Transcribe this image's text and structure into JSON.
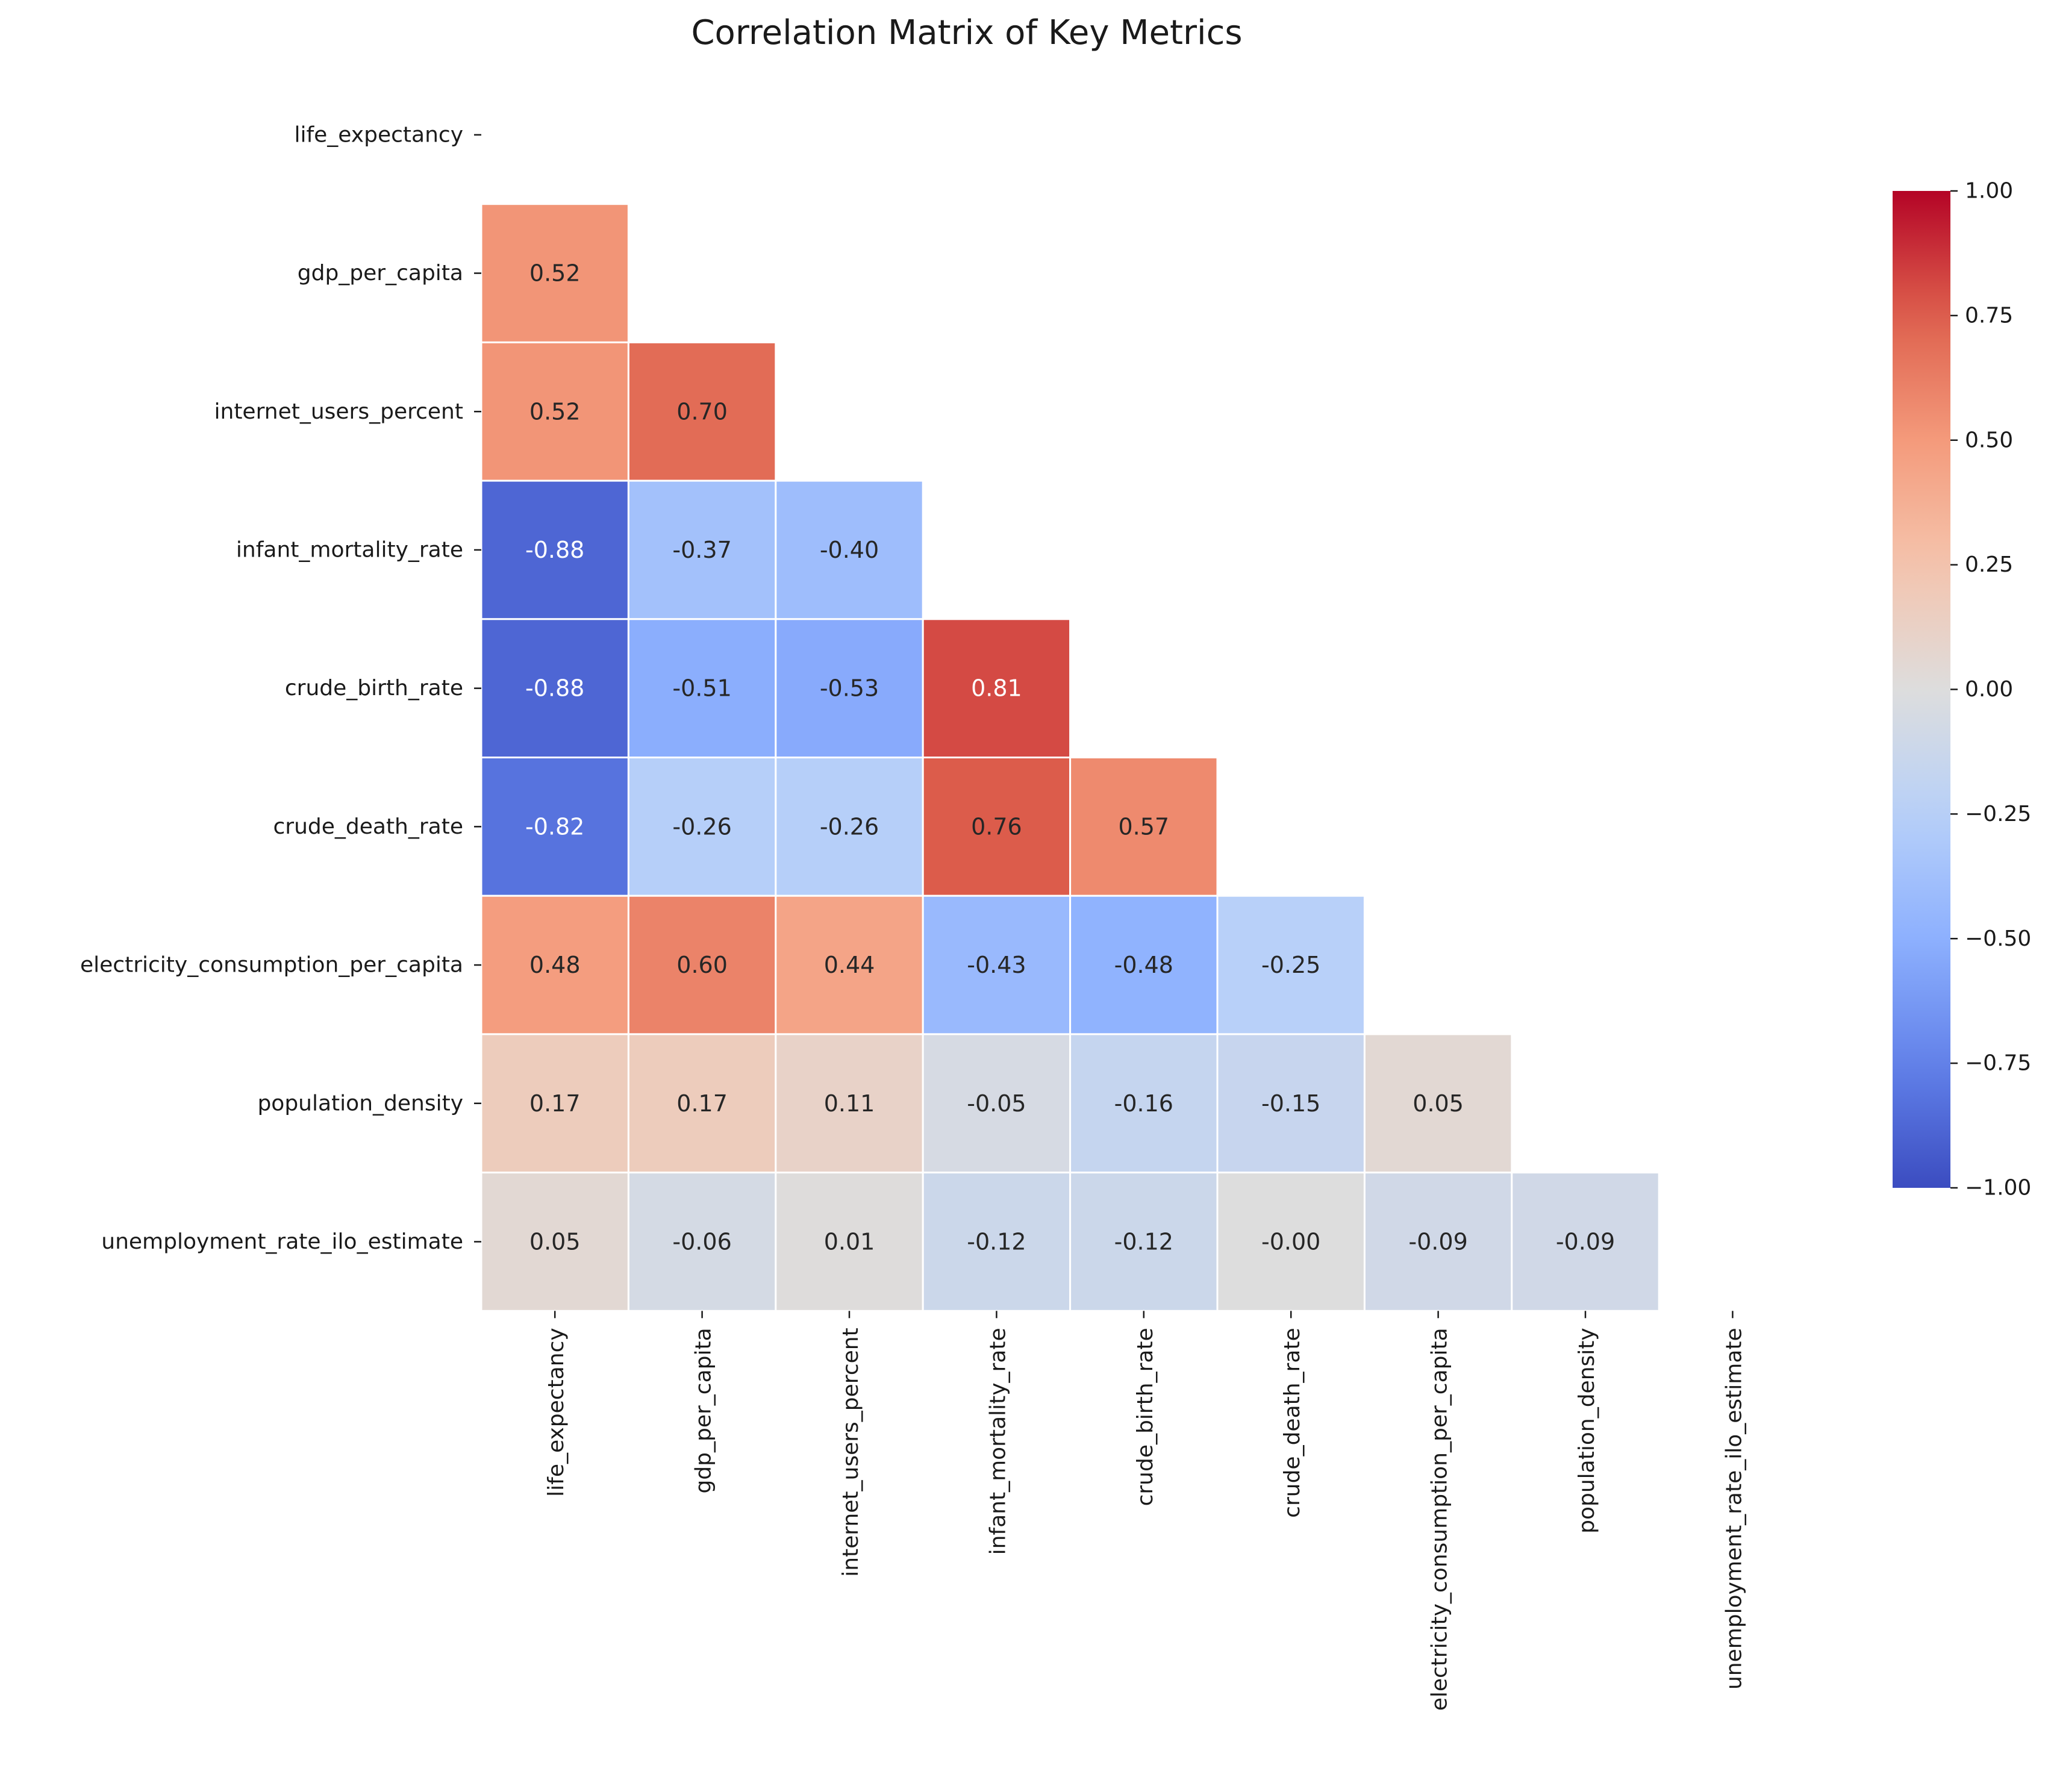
{
  "chart_data": {
    "type": "heatmap",
    "title": "Correlation Matrix of Key Metrics",
    "variables": [
      "life_expectancy",
      "gdp_per_capita",
      "internet_users_percent",
      "infant_mortality_rate",
      "crude_birth_rate",
      "crude_death_rate",
      "electricity_consumption_per_capita",
      "population_density",
      "unemployment_rate_ilo_estimate"
    ],
    "matrix": [
      [
        null,
        null,
        null,
        null,
        null,
        null,
        null,
        null,
        null
      ],
      [
        0.52,
        null,
        null,
        null,
        null,
        null,
        null,
        null,
        null
      ],
      [
        0.52,
        0.7,
        null,
        null,
        null,
        null,
        null,
        null,
        null
      ],
      [
        -0.88,
        -0.37,
        -0.4,
        null,
        null,
        null,
        null,
        null,
        null
      ],
      [
        -0.88,
        -0.51,
        -0.53,
        0.81,
        null,
        null,
        null,
        null,
        null
      ],
      [
        -0.82,
        -0.26,
        -0.26,
        0.76,
        0.57,
        null,
        null,
        null,
        null
      ],
      [
        0.48,
        0.6,
        0.44,
        -0.43,
        -0.48,
        -0.25,
        null,
        null,
        null
      ],
      [
        0.17,
        0.17,
        0.11,
        -0.05,
        -0.16,
        -0.15,
        0.05,
        null,
        null
      ],
      [
        0.05,
        -0.06,
        0.01,
        -0.12,
        -0.12,
        -0.0,
        -0.09,
        -0.09,
        null
      ]
    ],
    "mask": "upper-triangle-including-diagonal",
    "value_format": "2 decimals",
    "colormap": "coolwarm",
    "color_range": [
      -1.0,
      1.0
    ],
    "colorbar_ticks": [
      "−1.00",
      "−0.75",
      "−0.50",
      "−0.25",
      "0.00",
      "0.25",
      "0.50",
      "0.75",
      "1.00"
    ],
    "colorbar_position": "right",
    "cell_line_color": "#ffffff"
  }
}
